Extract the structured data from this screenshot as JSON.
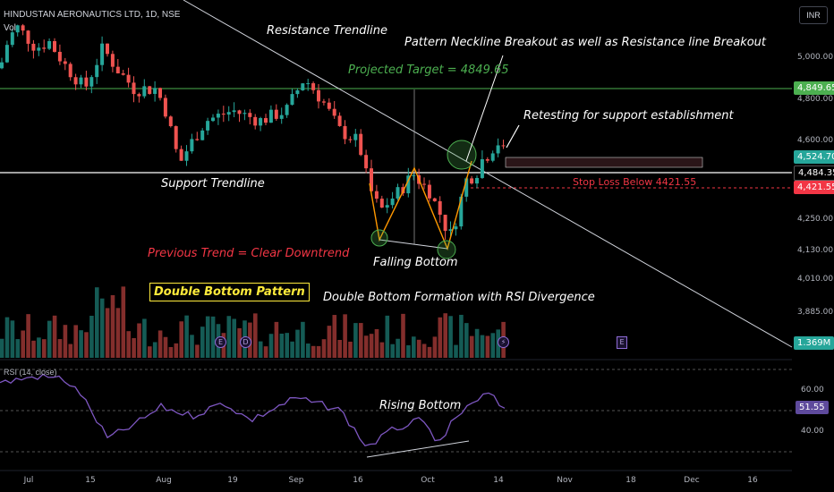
{
  "header": {
    "symbol": "HINDUSTAN AERONAUTICS LTD, 1D, NSE",
    "volume_label": "Vol",
    "currency": "INR"
  },
  "chart_data": {
    "type": "candlestick",
    "price_axis_ticks": [
      5000,
      4800,
      4600,
      4250,
      4130,
      4010,
      3885
    ],
    "price_axis_labels": [
      "5,000.00",
      "4,800.00",
      "4,600.00",
      "4,250.00",
      "4,130.00",
      "4,010.00",
      "3,885.00"
    ],
    "price_markers": [
      {
        "label": "4,849.65",
        "value": 4849.65,
        "color": "#4caf50"
      },
      {
        "label": "4,524.70",
        "value": 4524.7,
        "color": "#26a69a"
      },
      {
        "label": "4,484.35",
        "value": 4484.35,
        "color": "#ffffff"
      },
      {
        "label": "4,421.55",
        "value": 4421.55,
        "color": "#f23645"
      },
      {
        "label": "1.369M",
        "value": 1369000,
        "color": "#26a69a"
      }
    ],
    "x_axis_labels": [
      "Jul",
      "15",
      "Aug",
      "19",
      "Sep",
      "16",
      "Oct",
      "14",
      "Nov",
      "18",
      "Dec",
      "16"
    ],
    "rsi": {
      "label": "RSI (14, close)",
      "ticks": [
        "60.00",
        "40.00"
      ],
      "current": "51.55"
    },
    "annotations": {
      "resistance": "Resistance Trendline",
      "breakout": "Pattern Neckline Breakout as well as Resistance line Breakout",
      "target": "Projected Target = 4849.65",
      "retest": "Retesting for support establishment",
      "support": "Support Trendline",
      "stop_loss": "Stop Loss Below 4421.55",
      "previous_trend": "Previous Trend = Clear Downtrend",
      "falling_bottom": "Falling Bottom",
      "pattern": "Double Bottom Pattern",
      "formation": "Double Bottom Formation with RSI Divergence",
      "rising_bottom": "Rising Bottom"
    },
    "events": [
      "E",
      "D",
      "E"
    ],
    "colors": {
      "up": "#26a69a",
      "down": "#ef5350",
      "rsi": "#7e57c2",
      "target": "#4caf50",
      "stop": "#f23645"
    }
  }
}
